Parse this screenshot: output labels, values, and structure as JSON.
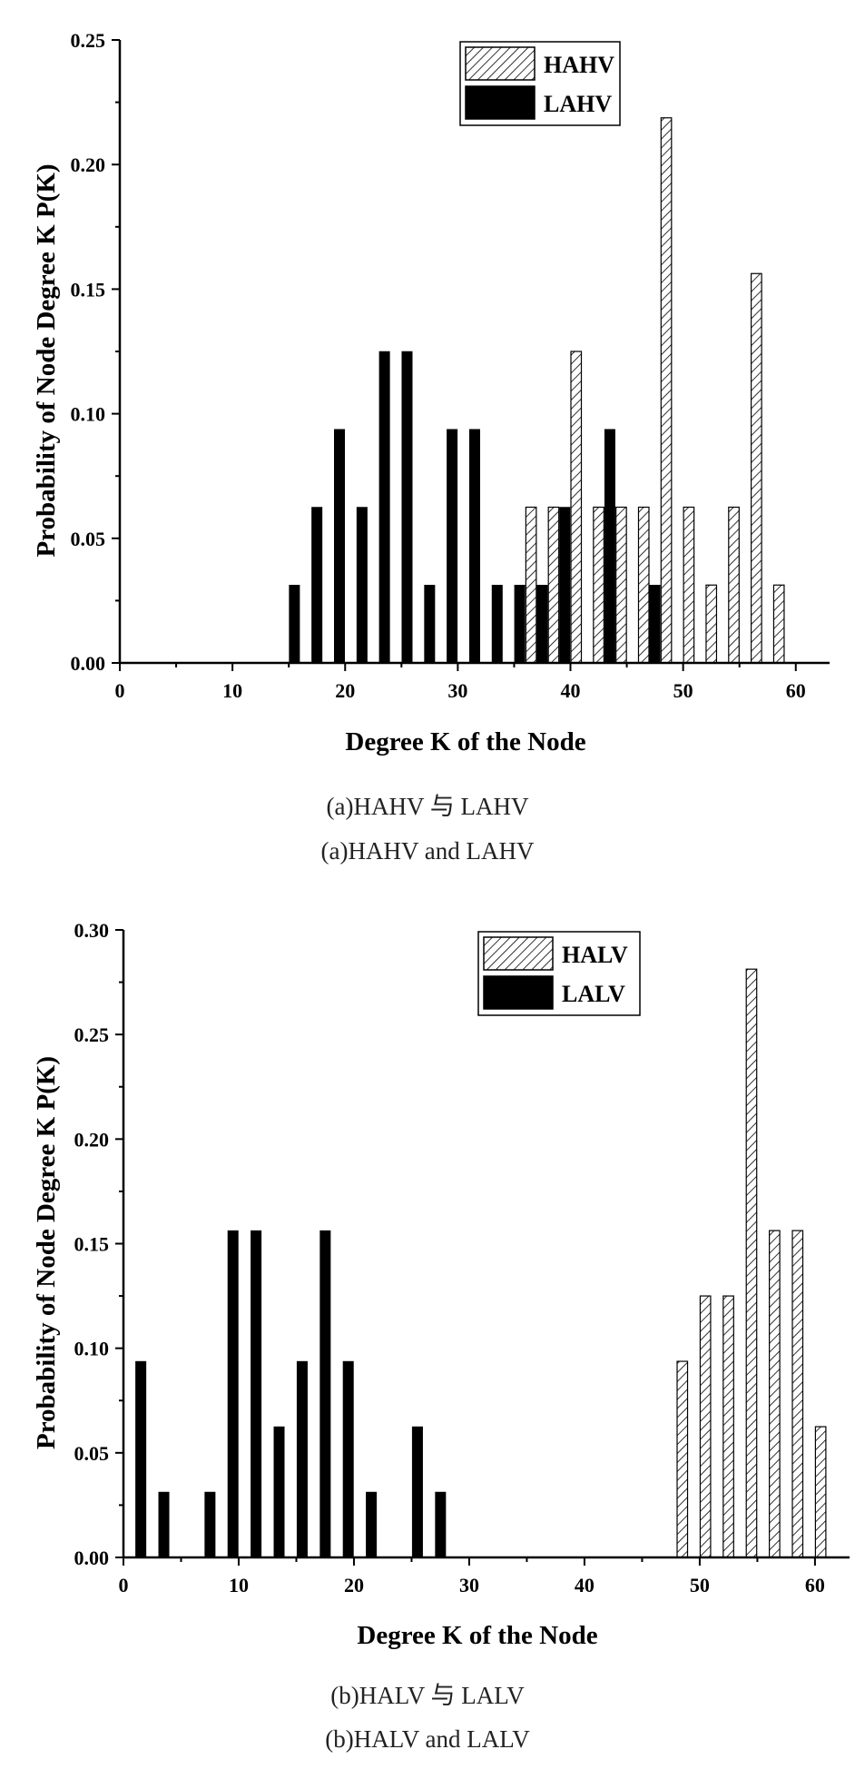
{
  "chart_data": [
    {
      "type": "bar",
      "xlabel": "Degree K of the Node",
      "ylabel": "Probability of Node Degree K P(K)",
      "xlim": [
        0,
        63
      ],
      "ylim": [
        0,
        0.25
      ],
      "xticks": [
        0,
        10,
        20,
        30,
        40,
        50,
        60
      ],
      "yticks": [
        0.0,
        0.05,
        0.1,
        0.15,
        0.2,
        0.25
      ],
      "ytick_decimals": 2,
      "legend_position": "top-right",
      "series": [
        {
          "name": "HAHV",
          "pattern": "hatched",
          "x": [
            36,
            38,
            40,
            42,
            44,
            46,
            48,
            50,
            52,
            54,
            56,
            58
          ],
          "values": [
            0.0625,
            0.0625,
            0.125,
            0.0625,
            0.0625,
            0.0625,
            0.21875,
            0.0625,
            0.03125,
            0.0625,
            0.15625,
            0.03125
          ]
        },
        {
          "name": "LAHV",
          "pattern": "solid",
          "x": [
            16,
            18,
            20,
            22,
            24,
            26,
            28,
            30,
            32,
            34,
            36,
            38,
            40,
            44,
            48
          ],
          "values": [
            0.03125,
            0.0625,
            0.09375,
            0.0625,
            0.125,
            0.125,
            0.03125,
            0.09375,
            0.09375,
            0.03125,
            0.03125,
            0.03125,
            0.0625,
            0.09375,
            0.03125
          ]
        }
      ],
      "caption_cn": "(a)HAHV 与 LAHV",
      "caption_en": "(a)HAHV and LAHV"
    },
    {
      "type": "bar",
      "xlabel": "Degree K of the Node",
      "ylabel": "Probability of Node Degree K P(K)",
      "xlim": [
        0,
        63
      ],
      "ylim": [
        0,
        0.3
      ],
      "xticks": [
        0,
        10,
        20,
        30,
        40,
        50,
        60
      ],
      "yticks": [
        0.0,
        0.05,
        0.1,
        0.15,
        0.2,
        0.25,
        0.3
      ],
      "ytick_decimals": 2,
      "legend_position": "top-right",
      "series": [
        {
          "name": "HALV",
          "pattern": "hatched",
          "x": [
            48,
            50,
            52,
            54,
            56,
            58,
            60
          ],
          "values": [
            0.09375,
            0.125,
            0.125,
            0.28125,
            0.15625,
            0.15625,
            0.0625
          ]
        },
        {
          "name": "LALV",
          "pattern": "solid",
          "x": [
            2,
            4,
            8,
            10,
            12,
            14,
            16,
            18,
            20,
            22,
            26,
            28
          ],
          "values": [
            0.09375,
            0.03125,
            0.03125,
            0.15625,
            0.15625,
            0.0625,
            0.09375,
            0.15625,
            0.09375,
            0.03125,
            0.0625,
            0.03125
          ]
        }
      ],
      "caption_cn": "(b)HALV 与 LALV",
      "caption_en": "(b)HALV and LALV"
    }
  ]
}
